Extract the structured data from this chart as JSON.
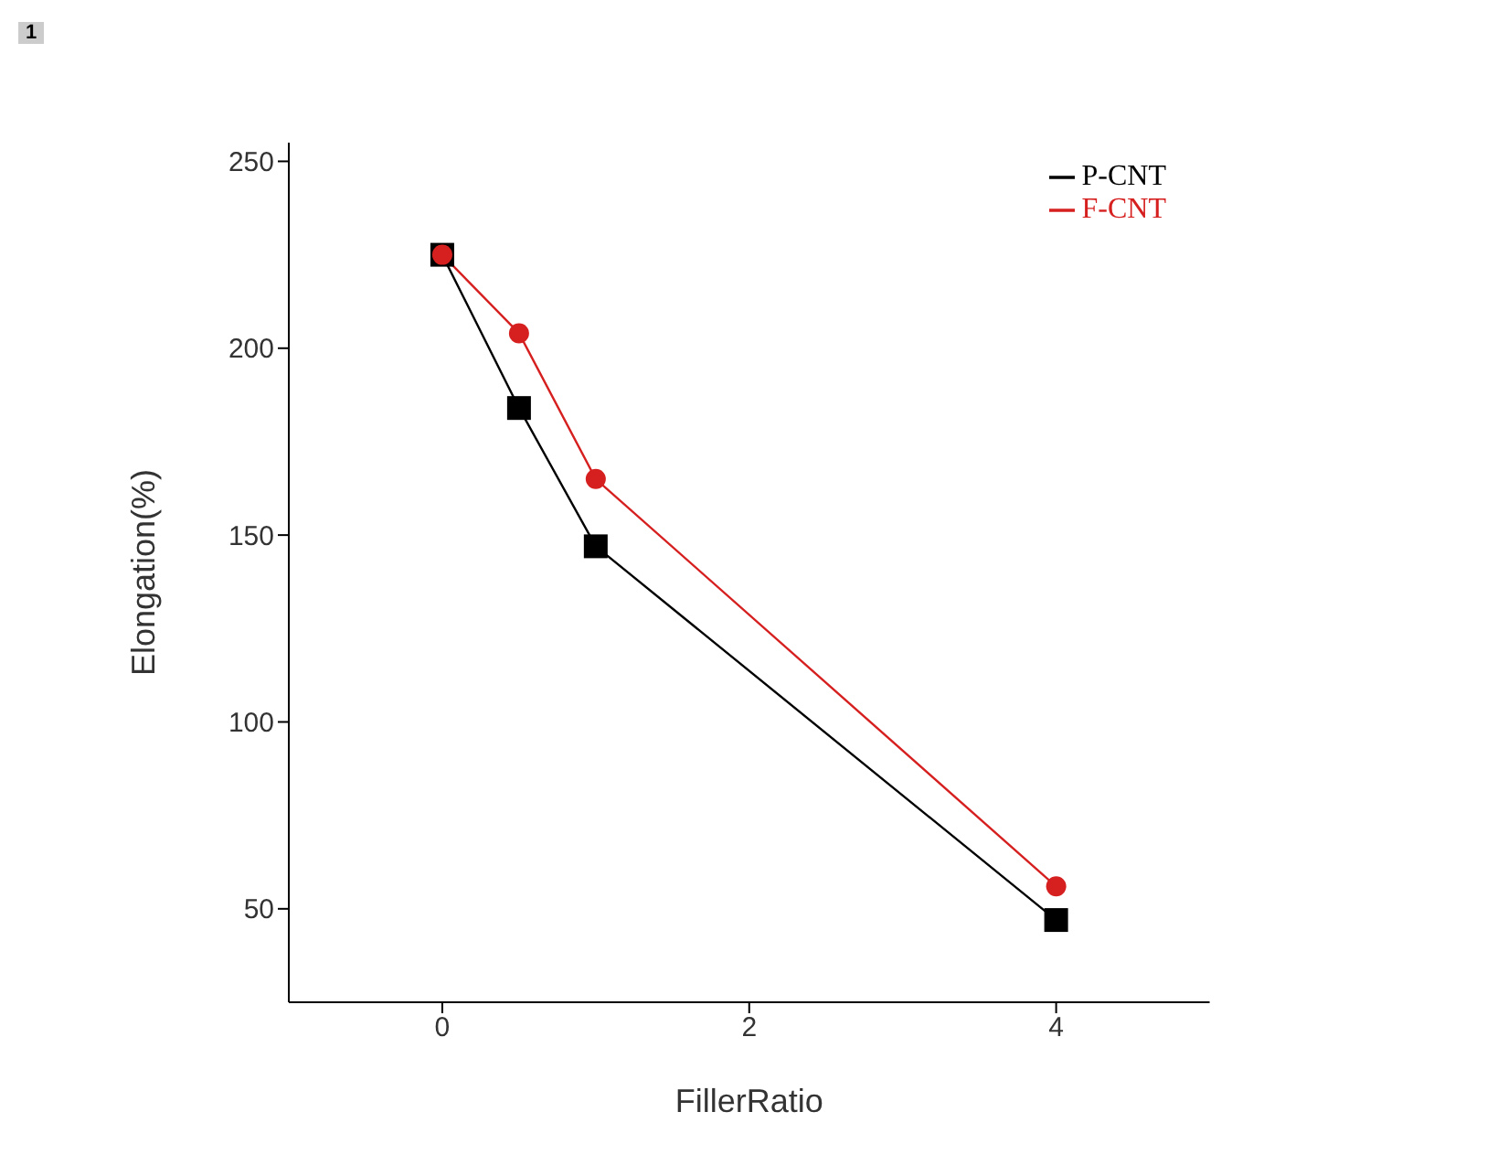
{
  "chart_data": {
    "type": "line",
    "xlabel": "FillerRatio",
    "ylabel": "Elongation(%)",
    "annotations": [
      "1"
    ],
    "x": [
      0,
      0.5,
      1,
      4
    ],
    "series": [
      {
        "name": "P-CNT",
        "color": "#000000",
        "marker": "square",
        "values": [
          225,
          184,
          147,
          47
        ]
      },
      {
        "name": "F-CNT",
        "color": "#d62020",
        "marker": "circle",
        "values": [
          225,
          204,
          165,
          56
        ]
      }
    ],
    "xlim": [
      -1,
      5
    ],
    "xticks": [
      0,
      2,
      4
    ],
    "ylim": [
      25,
      255
    ],
    "yticks": [
      50,
      100,
      150,
      200,
      250
    ],
    "grid": false,
    "legend": "top right",
    "line_style": "solid"
  }
}
